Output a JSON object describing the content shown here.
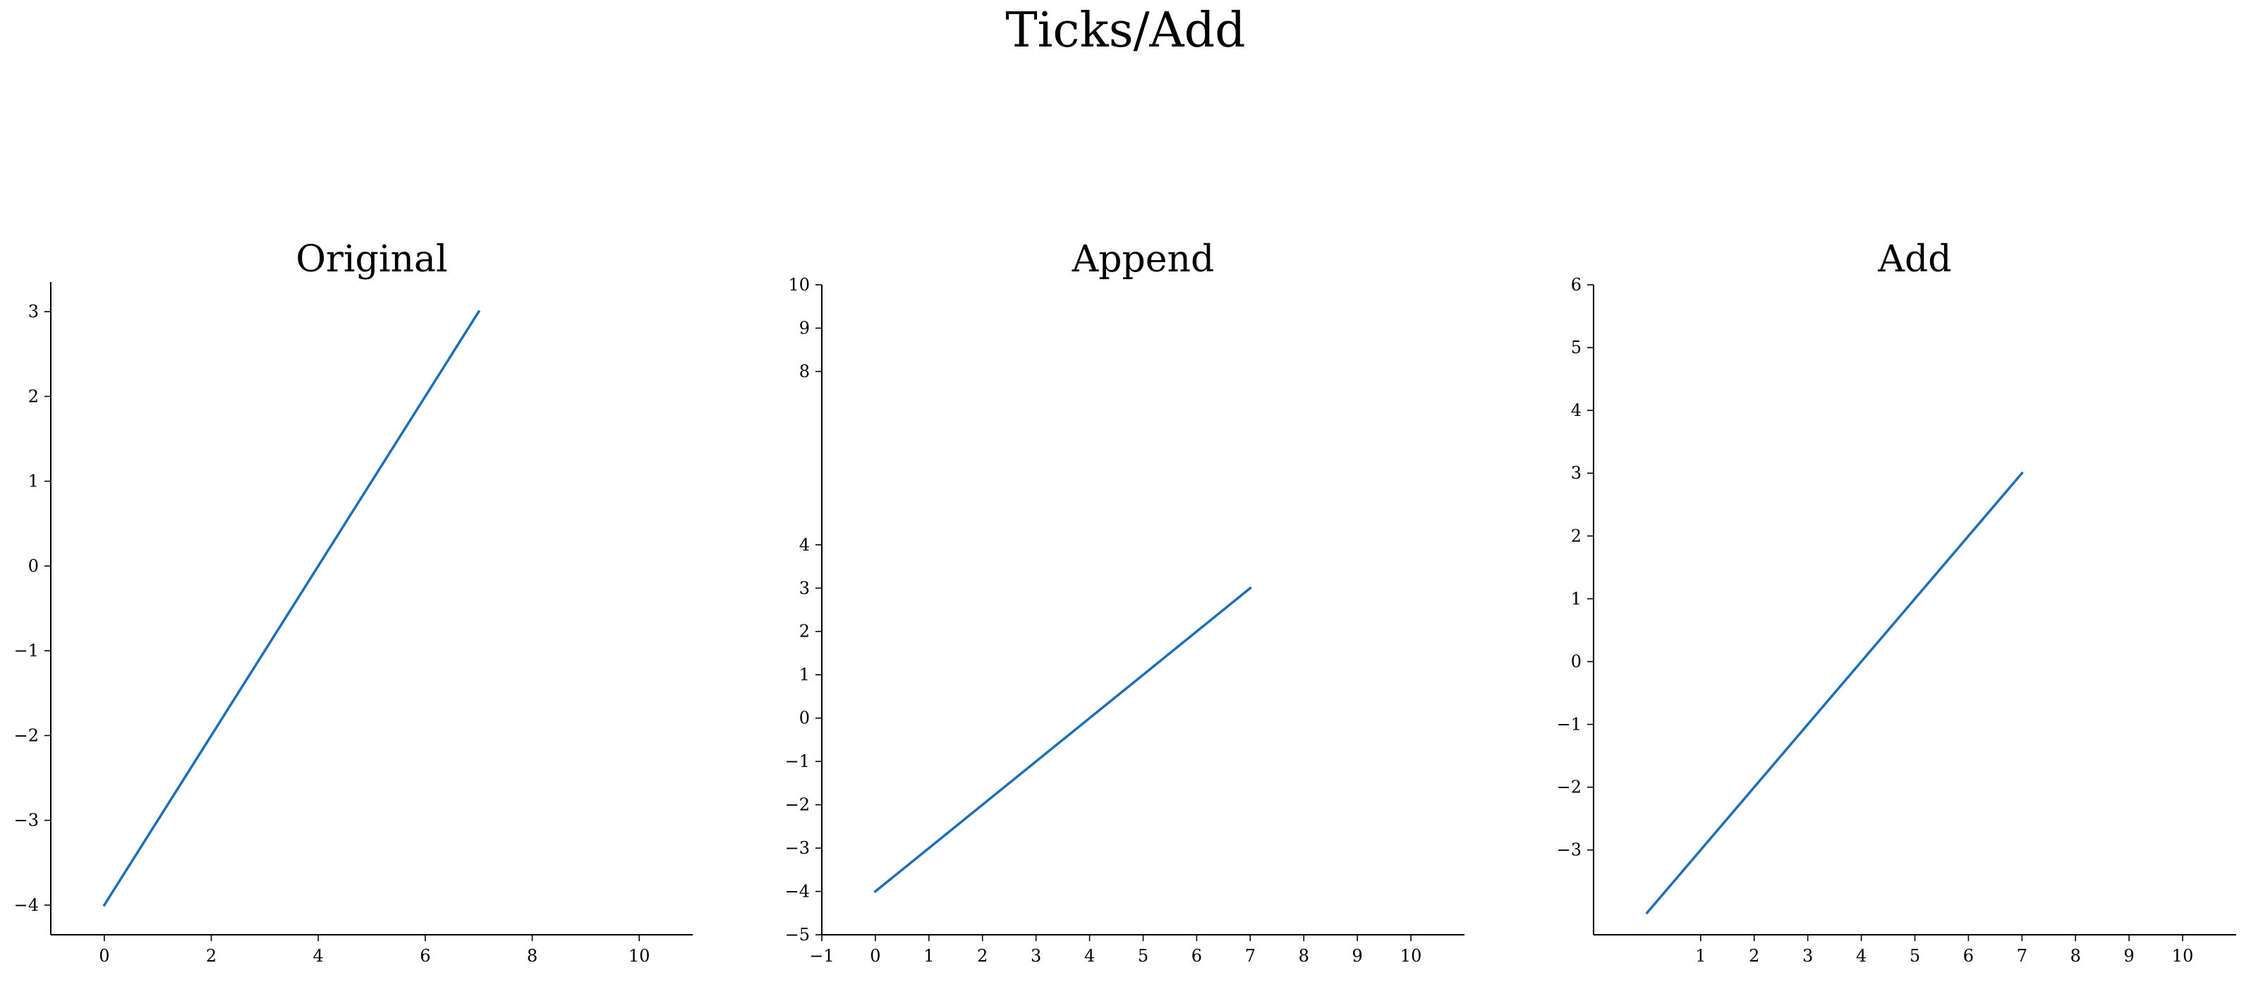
{
  "figure": {
    "suptitle": "Ticks/Add",
    "line_color": "#1f6fb4"
  },
  "chart_data": [
    {
      "type": "line",
      "title": "Original",
      "xlabel": "",
      "ylabel": "",
      "xlim": [
        -1,
        11
      ],
      "ylim": [
        -4.35,
        3.35
      ],
      "x_ticks": [
        0,
        2,
        4,
        6,
        8,
        10
      ],
      "y_ticks": [
        -4,
        -3,
        -2,
        -1,
        0,
        1,
        2,
        3
      ],
      "series": [
        {
          "x": [
            0,
            7
          ],
          "y": [
            -4,
            3
          ]
        }
      ],
      "grid": false,
      "spines": [
        "left",
        "bottom"
      ]
    },
    {
      "type": "line",
      "title": "Append",
      "xlabel": "",
      "ylabel": "",
      "xlim": [
        -1,
        11
      ],
      "ylim": [
        -5,
        10
      ],
      "x_ticks": [
        -1,
        0,
        1,
        2,
        3,
        4,
        5,
        6,
        7,
        8,
        9,
        10
      ],
      "y_ticks": [
        -5,
        -4,
        -3,
        -2,
        -1,
        0,
        1,
        2,
        3,
        4,
        8,
        9,
        10
      ],
      "series": [
        {
          "x": [
            0,
            7
          ],
          "y": [
            -4,
            3
          ]
        }
      ],
      "grid": false,
      "spines": [
        "left",
        "bottom"
      ]
    },
    {
      "type": "line",
      "title": "Add",
      "xlabel": "",
      "ylabel": "",
      "xlim": [
        -1,
        11
      ],
      "ylim": [
        -4.35,
        6
      ],
      "x_ticks": [
        1,
        2,
        3,
        4,
        5,
        6,
        7,
        8,
        9,
        10
      ],
      "y_ticks": [
        -3,
        -2,
        -1,
        0,
        1,
        2,
        3,
        4,
        5,
        6
      ],
      "series": [
        {
          "x": [
            0,
            7
          ],
          "y": [
            -4,
            3
          ]
        }
      ],
      "grid": false,
      "spines": [
        "left",
        "bottom"
      ]
    }
  ]
}
